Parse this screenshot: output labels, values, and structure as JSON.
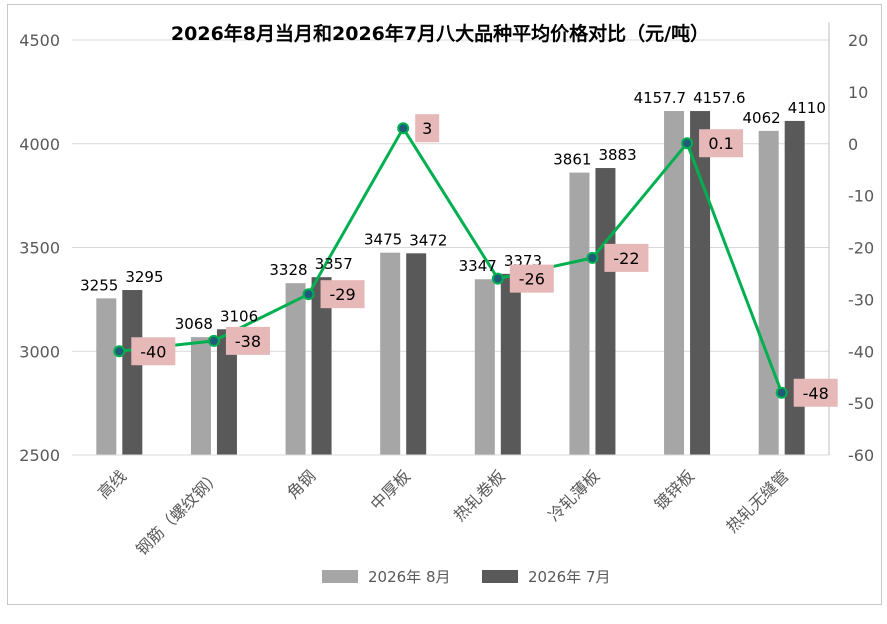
{
  "chart_data": {
    "type": "bar",
    "title": "2026年8月当月和2026年7月八大品种平均价格对比（元/吨）",
    "categories": [
      "高线",
      "钢筋（螺纹钢）",
      "角钢",
      "中厚板",
      "热轧卷板",
      "冷轧薄板",
      "镀锌板",
      "热轧无缝管"
    ],
    "series": [
      {
        "name": "2026年 8月",
        "axis": "left",
        "color": "#a6a6a6",
        "values": [
          3255,
          3068,
          3328,
          3475,
          3347,
          3861,
          4157.7,
          4062
        ],
        "labels": [
          "3255",
          "3068",
          "3328",
          "3475",
          "3347",
          "3861",
          "4157.7",
          "4062"
        ]
      },
      {
        "name": "2026年 7月",
        "axis": "left",
        "color": "#595959",
        "values": [
          3295,
          3106,
          3357,
          3472,
          3373,
          3883,
          4157.6,
          4110
        ],
        "labels": [
          "3295",
          "3106",
          "3357",
          "3472",
          "3373",
          "3883",
          "4157.6",
          "4110"
        ]
      },
      {
        "name": "",
        "type": "line",
        "axis": "right",
        "color": "#00b050",
        "values": [
          -40,
          -38,
          -29,
          3,
          -26,
          -22,
          0.1,
          -48
        ],
        "labels": [
          "-40",
          "-38",
          "-29",
          "3",
          "-26",
          "-22",
          "0.1",
          "-48"
        ]
      }
    ],
    "y_left": {
      "min": 2500,
      "max": 4500,
      "ticks": [
        "2500",
        "3000",
        "3500",
        "4000",
        "4500"
      ]
    },
    "y_right": {
      "min": -60,
      "max": 20,
      "ticks": [
        "-60",
        "-50",
        "-40",
        "-30",
        "-20",
        "-10",
        "0",
        "10",
        "20"
      ]
    },
    "grid": true,
    "legend": "bottom"
  }
}
